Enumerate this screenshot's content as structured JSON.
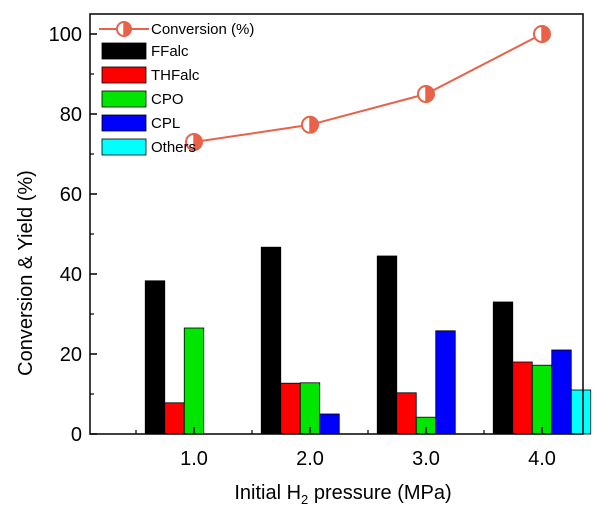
{
  "chart_data": {
    "type": "bar",
    "title": "",
    "xlabel_prefix": "Initial H",
    "xlabel_sub": "2",
    "xlabel_suffix": " pressure (MPa)",
    "ylabel": "Conversion & Yield (%)",
    "categories": [
      "1.0",
      "2.0",
      "3.0",
      "4.0"
    ],
    "ylim": [
      0,
      105
    ],
    "yticks": [
      0,
      20,
      40,
      60,
      80,
      100
    ],
    "grid": false,
    "legend_position": "top-left",
    "series": [
      {
        "name": "FFalc",
        "color": "#000000",
        "values": [
          38.3,
          46.7,
          44.5,
          33.0
        ]
      },
      {
        "name": "THFalc",
        "color": "#ff0000",
        "values": [
          7.8,
          12.7,
          10.3,
          18.0
        ]
      },
      {
        "name": "CPO",
        "color": "#00e600",
        "values": [
          26.5,
          12.8,
          4.2,
          17.2
        ]
      },
      {
        "name": "CPL",
        "color": "#0000ff",
        "values": [
          0,
          5.0,
          25.8,
          21.0
        ]
      },
      {
        "name": "Others",
        "color": "#00ffff",
        "values": [
          0,
          0,
          0,
          11.0
        ]
      }
    ],
    "line_series": {
      "name": "Conversion (%)",
      "color": "#e8624a",
      "values": [
        73.0,
        77.3,
        85.0,
        100.0
      ]
    }
  }
}
